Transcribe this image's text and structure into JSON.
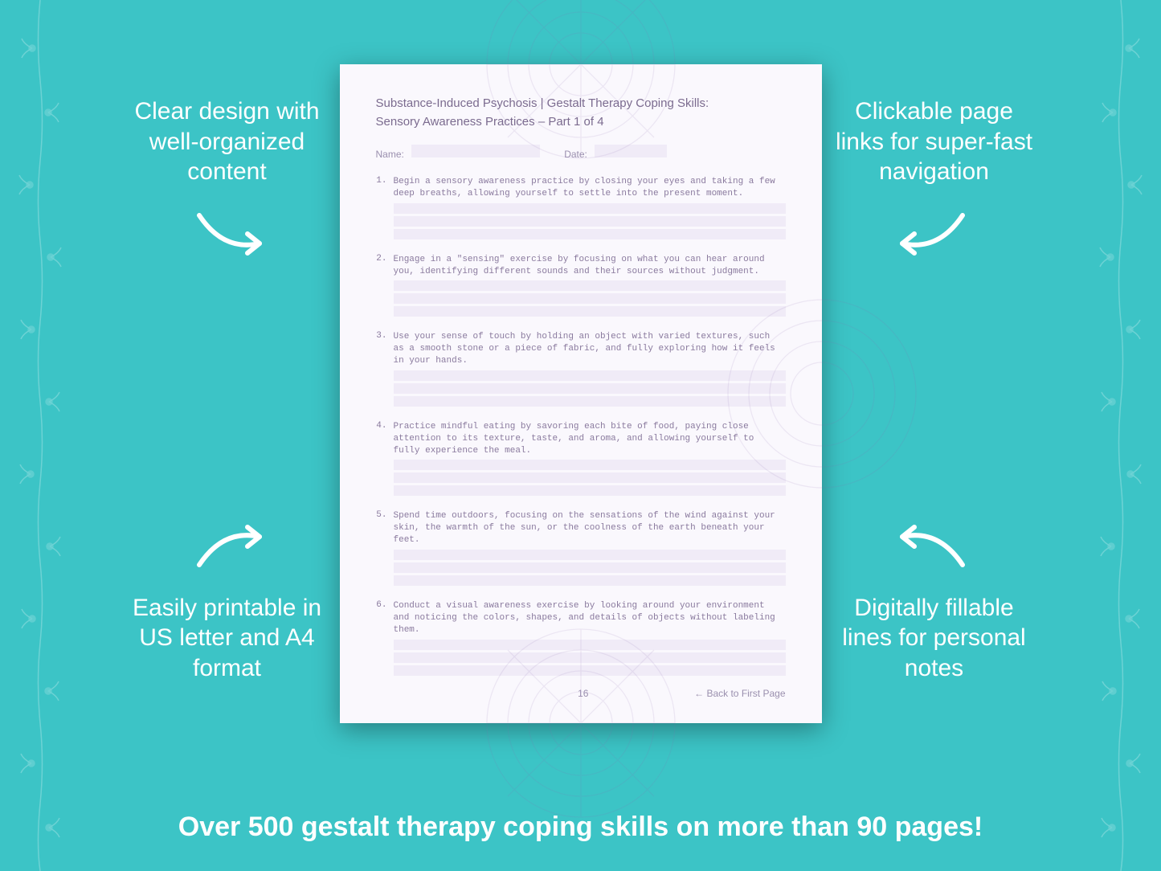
{
  "background_color": "#3cc4c6",
  "callouts": {
    "top_left": "Clear design with well-organized content",
    "bottom_left": "Easily printable in US letter and A4 format",
    "top_right": "Clickable page links for super-fast navigation",
    "bottom_right": "Digitally fillable lines for personal notes"
  },
  "document": {
    "title_line1": "Substance-Induced Psychosis | Gestalt Therapy Coping Skills:",
    "title_line2": "Sensory Awareness Practices  – Part 1 of 4",
    "name_label": "Name:",
    "date_label": "Date:",
    "page_number": "16",
    "back_link": "← Back to First Page",
    "page_bg": "#faf8fd",
    "fill_color": "#f0ebf7",
    "text_color": "#7b6b8f",
    "mono_color": "#8a7a9e",
    "questions": [
      {
        "num": "1.",
        "text": "Begin a sensory awareness practice by closing your eyes and taking a few deep breaths, allowing yourself to settle into the present moment."
      },
      {
        "num": "2.",
        "text": "Engage in a \"sensing\" exercise by focusing on what you can hear around you, identifying different sounds and their sources without judgment."
      },
      {
        "num": "3.",
        "text": "Use your sense of touch by holding an object with varied textures, such as a smooth stone or a piece of fabric, and fully exploring how it feels in your hands."
      },
      {
        "num": "4.",
        "text": "Practice mindful eating by savoring each bite of food, paying close attention to its texture, taste, and aroma, and allowing yourself to fully experience the meal."
      },
      {
        "num": "5.",
        "text": "Spend time outdoors, focusing on the sensations of the wind against your skin, the warmth of the sun, or the coolness of the earth beneath your feet."
      },
      {
        "num": "6.",
        "text": "Conduct a visual awareness exercise by looking around your environment and noticing the colors, shapes, and details of objects without labeling them."
      }
    ]
  },
  "banner": "Over 500 gestalt therapy coping skills on more than 90 pages!",
  "styling": {
    "callout_fontsize": 30,
    "callout_color": "#ffffff",
    "banner_fontsize": 34,
    "arrow_color": "#ffffff",
    "arrow_stroke_width": 6,
    "floral_opacity": 0.25
  }
}
